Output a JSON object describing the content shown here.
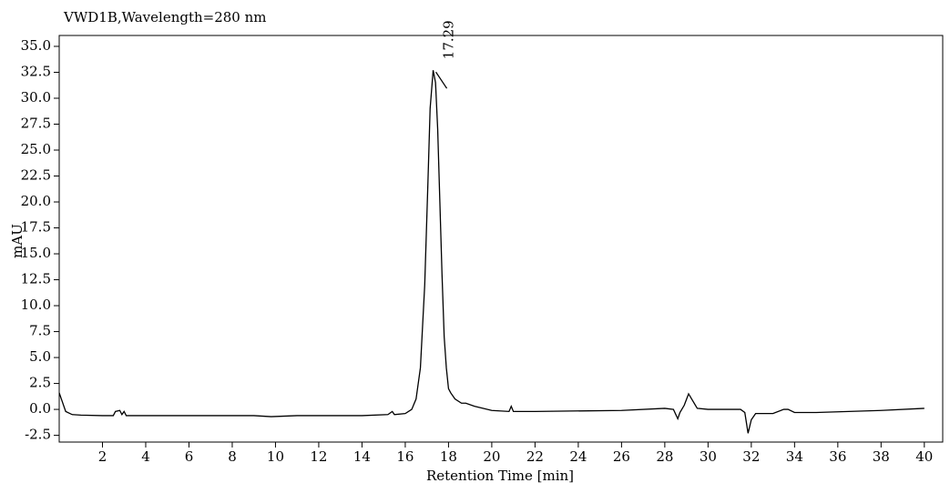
{
  "chart_data": {
    "type": "line",
    "title": "VWD1B,Wavelength=280 nm",
    "x_label": "Retention Time [min]",
    "y_label": "mAU",
    "annotations": [
      {
        "text": "17.29"
      }
    ],
    "x": [
      0.0,
      0.1,
      0.3,
      0.6,
      1.0,
      2.0,
      2.5,
      2.6,
      2.8,
      2.9,
      3.0,
      3.1,
      3.5,
      6.0,
      9.0,
      9.8,
      11.0,
      14.0,
      15.2,
      15.4,
      15.5,
      16.0,
      16.3,
      16.5,
      16.7,
      16.9,
      17.05,
      17.15,
      17.29,
      17.4,
      17.5,
      17.6,
      17.7,
      17.8,
      17.9,
      18.0,
      18.1,
      18.3,
      18.6,
      18.8,
      19.2,
      20.0,
      20.8,
      20.9,
      21.0,
      22.0,
      26.0,
      28.0,
      28.4,
      28.6,
      28.7,
      28.9,
      29.1,
      29.3,
      29.5,
      30.0,
      31.5,
      31.7,
      31.85,
      32.0,
      32.2,
      33.0,
      33.5,
      33.7,
      34.0,
      35.0,
      38.0,
      40.0
    ],
    "series": [
      {
        "color": "#000000",
        "values": [
          1.6,
          1.0,
          -0.2,
          -0.5,
          -0.55,
          -0.6,
          -0.6,
          -0.2,
          -0.1,
          -0.5,
          -0.2,
          -0.6,
          -0.6,
          -0.6,
          -0.6,
          -0.7,
          -0.6,
          -0.6,
          -0.5,
          -0.2,
          -0.5,
          -0.4,
          0.0,
          1.0,
          4.0,
          12.0,
          22.0,
          29.0,
          32.7,
          31.5,
          27.0,
          20.0,
          13.0,
          7.0,
          4.0,
          2.0,
          1.6,
          1.0,
          0.6,
          0.6,
          0.3,
          -0.1,
          -0.2,
          0.3,
          -0.2,
          -0.2,
          -0.1,
          0.1,
          0.0,
          -0.9,
          -0.3,
          0.4,
          1.5,
          0.8,
          0.1,
          0.0,
          0.0,
          -0.3,
          -2.3,
          -1.0,
          -0.4,
          -0.4,
          0.0,
          0.0,
          -0.3,
          -0.3,
          -0.1,
          0.1
        ]
      }
    ],
    "xlim": [
      0,
      40.85
    ],
    "ylim": [
      -3.15,
      36.05
    ],
    "xticks": [
      2,
      4,
      6,
      8,
      10,
      12,
      14,
      16,
      18,
      20,
      22,
      24,
      26,
      28,
      30,
      32,
      34,
      36,
      38,
      40
    ],
    "yticks": [
      {
        "value": 35,
        "label": "35.0"
      },
      32.5,
      {
        "value": 30,
        "label": "30.0"
      },
      27.5,
      {
        "value": 25,
        "label": "25.0"
      },
      22.5,
      {
        "value": 20,
        "label": "20.0"
      },
      17.5,
      {
        "value": 15,
        "label": "15.0"
      },
      12.5,
      {
        "value": 10,
        "label": "10.0"
      },
      7.5,
      {
        "value": 5,
        "label": "5.0"
      },
      2.5,
      {
        "value": 0,
        "label": "0.0"
      },
      -2.5
    ],
    "grid": false
  }
}
